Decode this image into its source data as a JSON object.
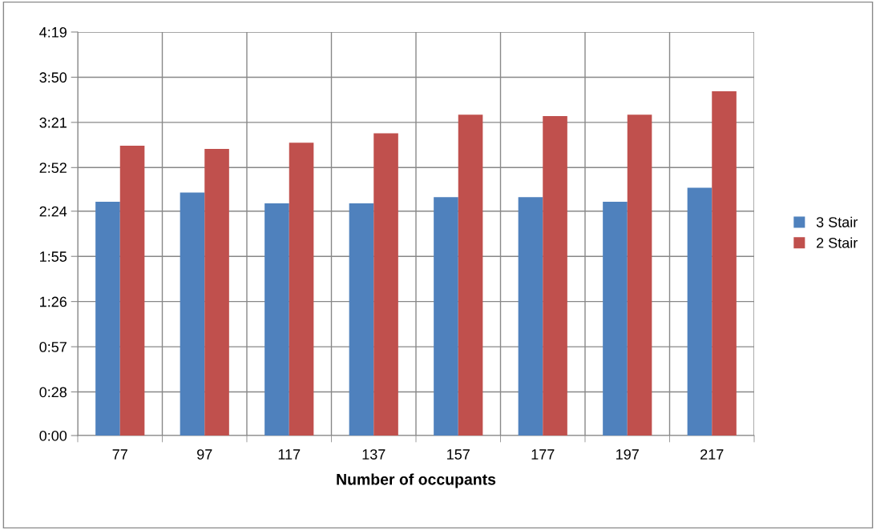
{
  "chart_data": {
    "type": "bar",
    "xlabel": "Number of occupants",
    "categories": [
      "77",
      "97",
      "117",
      "137",
      "157",
      "177",
      "197",
      "217"
    ],
    "series": [
      {
        "name": "3 Stair",
        "color": "#4f81bd",
        "values": [
          150,
          156,
          149,
          149,
          153,
          153,
          150,
          159
        ]
      },
      {
        "name": "2 Stair",
        "color": "#c0504d",
        "values": [
          186,
          184,
          188,
          194,
          206,
          205,
          206,
          221
        ]
      }
    ],
    "ylim": [
      0,
      259
    ],
    "yticks": [
      {
        "value": 0,
        "label": "0:00"
      },
      {
        "value": 28,
        "label": "0:28"
      },
      {
        "value": 57,
        "label": "0:57"
      },
      {
        "value": 86,
        "label": "1:26"
      },
      {
        "value": 115,
        "label": "1:55"
      },
      {
        "value": 144,
        "label": "2:24"
      },
      {
        "value": 172,
        "label": "2:52"
      },
      {
        "value": 201,
        "label": "3:21"
      },
      {
        "value": 230,
        "label": "3:50"
      },
      {
        "value": 259,
        "label": "4:19"
      }
    ],
    "grid": true,
    "legend": "right"
  }
}
